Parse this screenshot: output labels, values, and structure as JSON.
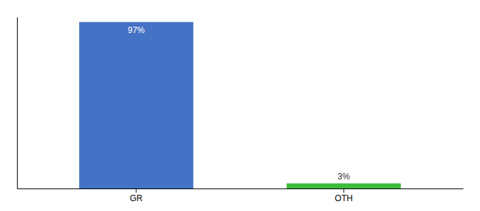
{
  "chart_data": {
    "type": "bar",
    "categories": [
      "GR",
      "OTH"
    ],
    "values": [
      97,
      3
    ],
    "value_labels": [
      "97%",
      "3%"
    ],
    "colors": [
      "#4472c4",
      "#3dbb3d"
    ],
    "ylim": [
      0,
      100
    ],
    "grid": false,
    "data_labels": true,
    "tick_labels": "x"
  }
}
